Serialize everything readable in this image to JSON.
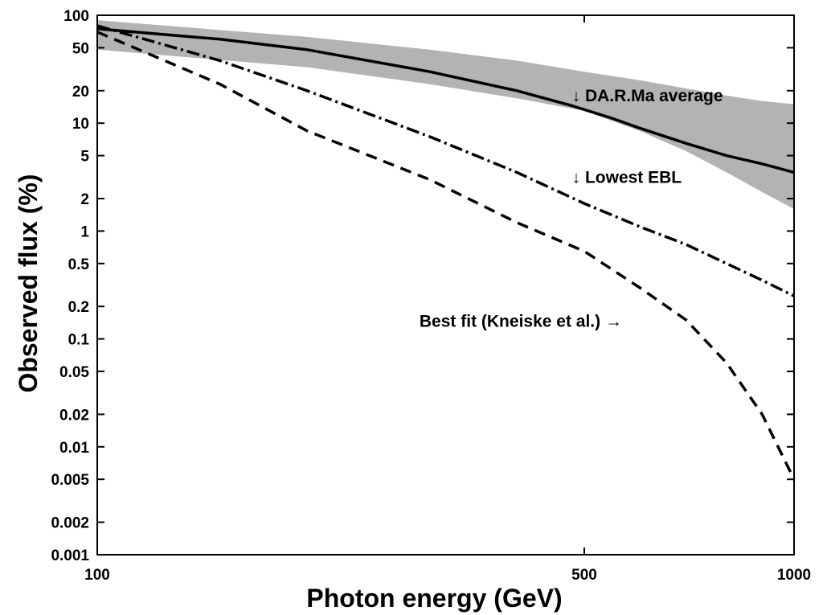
{
  "chart_data": {
    "type": "line",
    "title": "",
    "xlabel": "Photon energy (GeV)",
    "ylabel": "Observed flux (%)",
    "x_scale": "log",
    "y_scale": "log",
    "xlim": [
      100,
      1000
    ],
    "ylim": [
      0.001,
      100
    ],
    "grid": false,
    "x_ticks": [
      {
        "value": 100,
        "label": "100"
      },
      {
        "value": 500,
        "label": "500"
      },
      {
        "value": 1000,
        "label": "1000"
      }
    ],
    "y_ticks": [
      {
        "value": 100,
        "label": "100"
      },
      {
        "value": 50,
        "label": "50"
      },
      {
        "value": 20,
        "label": "20"
      },
      {
        "value": 10,
        "label": "10"
      },
      {
        "value": 5,
        "label": "5"
      },
      {
        "value": 2,
        "label": "2"
      },
      {
        "value": 1,
        "label": "1"
      },
      {
        "value": 0.5,
        "label": "0.5"
      },
      {
        "value": 0.2,
        "label": "0.2"
      },
      {
        "value": 0.1,
        "label": "0.1"
      },
      {
        "value": 0.05,
        "label": "0.05"
      },
      {
        "value": 0.02,
        "label": "0.02"
      },
      {
        "value": 0.01,
        "label": "0.01"
      },
      {
        "value": 0.005,
        "label": "0.005"
      },
      {
        "value": 0.002,
        "label": "0.002"
      },
      {
        "value": 0.001,
        "label": "0.001"
      }
    ],
    "band": {
      "color": "#b3b3b3",
      "x": [
        100,
        200,
        300,
        400,
        500,
        600,
        700,
        800,
        900,
        1000
      ],
      "upper": [
        90,
        63,
        48,
        38,
        30,
        25,
        21,
        18,
        16,
        15
      ],
      "lower": [
        48,
        33,
        23,
        17,
        13,
        8.5,
        5.5,
        3.5,
        2.3,
        1.6
      ]
    },
    "series": [
      {
        "style": "solid",
        "x": [
          100,
          150,
          200,
          300,
          400,
          480,
          550,
          600,
          700,
          800,
          900,
          1000
        ],
        "y": [
          75,
          60,
          48,
          30,
          20,
          14.5,
          11,
          9,
          6.5,
          5,
          4.2,
          3.5
        ]
      },
      {
        "style": "dashdot",
        "x": [
          100,
          150,
          200,
          300,
          400,
          500,
          600,
          700,
          800,
          900,
          1000
        ],
        "y": [
          80,
          38,
          20,
          7.5,
          3.5,
          1.8,
          1.1,
          0.75,
          0.5,
          0.35,
          0.25
        ]
      },
      {
        "style": "dashed",
        "x": [
          100,
          150,
          200,
          300,
          400,
          500,
          600,
          700,
          800,
          900,
          1000
        ],
        "y": [
          70,
          23,
          8.5,
          3,
          1.2,
          0.65,
          0.3,
          0.15,
          0.06,
          0.02,
          0.005
        ]
      }
    ],
    "annotations": [
      {
        "text": "↓ DA.R.Ma average",
        "x": 480,
        "y": 16
      },
      {
        "text": "↓ Lowest EBL",
        "x": 480,
        "y": 2.8
      },
      {
        "text": "Best fit (Kneiske et al.) →",
        "x": 290,
        "y": 0.13
      }
    ]
  }
}
